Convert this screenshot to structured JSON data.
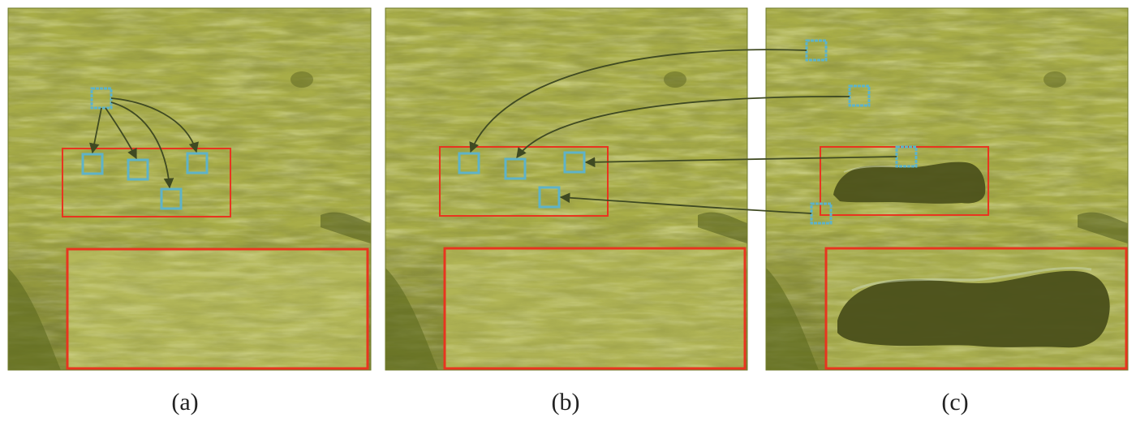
{
  "panels": [
    {
      "id": "a",
      "caption": "(a)",
      "object_visible": false
    },
    {
      "id": "b",
      "caption": "(b)",
      "object_visible": false
    },
    {
      "id": "c",
      "caption": "(c)",
      "object_visible": true
    }
  ],
  "colors": {
    "grass_base": "#a8ad48",
    "grass_light": "#c3c86a",
    "grass_dark": "#7f8a2e",
    "object_dark": "#4a4f1a",
    "highlight_box": "#e8351f",
    "patch_box": "#5fb3c8",
    "arrow": "#3f4a22",
    "caption_text": "#222222"
  },
  "icons": {
    "patch": "square-outline-icon",
    "connection": "curved-arrow-icon"
  }
}
